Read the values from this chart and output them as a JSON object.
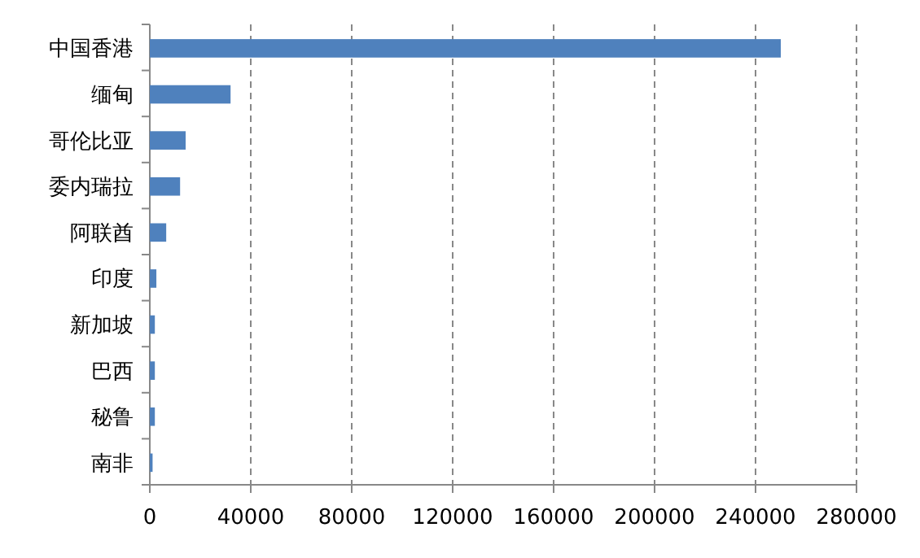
{
  "chart_data": {
    "type": "bar",
    "orientation": "horizontal",
    "categories": [
      "中国香港",
      "缅甸",
      "哥伦比亚",
      "委内瑞拉",
      "阿联酋",
      "印度",
      "新加坡",
      "巴西",
      "秘鲁",
      "南非"
    ],
    "values": [
      250000,
      32000,
      14200,
      12000,
      6500,
      2600,
      2000,
      2000,
      2000,
      1100
    ],
    "color": "#4f81bd",
    "xlim": [
      0,
      280000
    ],
    "xticks": [
      0,
      40000,
      80000,
      120000,
      160000,
      200000,
      240000,
      280000
    ],
    "grid": "x"
  }
}
